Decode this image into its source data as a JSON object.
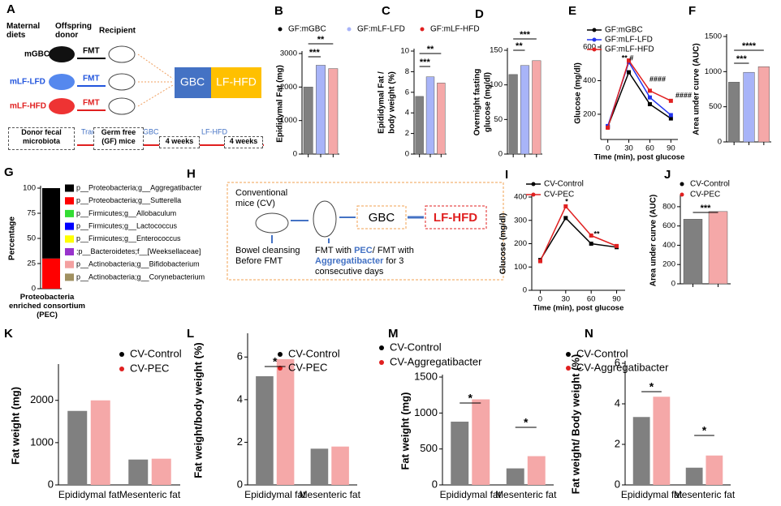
{
  "diagram_a": {
    "panel": "A",
    "maternal_diets": "Maternal diets",
    "offspring_donor": "Offspring donor",
    "recipient": "Recipient",
    "groups": [
      "mGBC",
      "mLF-LFD",
      "mLF-HFD"
    ],
    "fmt": [
      "FMT",
      "FMT",
      "FMT"
    ],
    "box": [
      "GBC",
      "LF-HFD"
    ],
    "flow": [
      "Donor fecal microbiota",
      "Transfer",
      "Germ free (GF) mice",
      "GBC",
      "4 weeks",
      "LF-HFD",
      "4 weeks"
    ]
  },
  "diagram_h": {
    "panel": "H",
    "mice": "Conventional mice (CV)",
    "cleansing": "Bowel cleansing Before FMT",
    "fmt": [
      "FMT with ",
      "PEC",
      "/ FMT with ",
      "Aggregatibacter",
      " for 3 consecutive days"
    ],
    "box": [
      "GBC",
      "LF-HFD"
    ]
  },
  "chart_data": [
    {
      "panel": "B",
      "type": "bar",
      "ylabel": "Epididymal Fat (mg)",
      "categories": [
        null,
        null,
        null
      ],
      "values": [
        2000,
        2650,
        2550
      ],
      "colors": [
        "#808080",
        "#a8b4f8",
        "#f5a8a8"
      ],
      "legend": [
        "GF:mGBC",
        "GF:mLF-LFD",
        "GF:mLF-HFD"
      ],
      "ylim": [
        0,
        3000
      ],
      "yticks": [
        0,
        1000,
        2000,
        3000
      ],
      "annotations": [
        "***",
        "**"
      ]
    },
    {
      "panel": "C",
      "type": "bar",
      "ylabel": [
        "Epididymal Fat /",
        "body weight (%)"
      ],
      "categories": [
        null,
        null,
        null
      ],
      "values": [
        5.6,
        7.5,
        6.9
      ],
      "colors": [
        "#808080",
        "#a8b4f8",
        "#f5a8a8"
      ],
      "ylim": [
        0,
        10
      ],
      "yticks": [
        0,
        2,
        4,
        6,
        8,
        10
      ],
      "annotations": [
        "***",
        "**"
      ]
    },
    {
      "panel": "D",
      "type": "bar",
      "ylabel": [
        "Overnight fasting",
        "glucose (mg/dl)"
      ],
      "categories": [
        null,
        null,
        null
      ],
      "values": [
        115,
        128,
        135
      ],
      "colors": [
        "#808080",
        "#a8b4f8",
        "#f5a8a8"
      ],
      "ylim": [
        0,
        150
      ],
      "yticks": [
        0,
        50,
        100,
        150
      ],
      "annotations": [
        "**",
        "***"
      ]
    },
    {
      "panel": "E",
      "type": "line",
      "ylabel": "Glucose (mg/dl)",
      "xlabel": "Time (min), post glucose",
      "x": [
        0,
        30,
        60,
        90
      ],
      "xlim": [
        -10,
        100
      ],
      "xticks": [
        0,
        30,
        60,
        90
      ],
      "ylim": [
        50,
        600
      ],
      "yticks": [
        200,
        400,
        600
      ],
      "series": [
        {
          "name": "GF:mGBC",
          "color": "#000000",
          "values": [
            125,
            450,
            260,
            175
          ]
        },
        {
          "name": "GF:mLF-LFD",
          "color": "#2233ee",
          "values": [
            130,
            510,
            300,
            195
          ]
        },
        {
          "name": "GF:mLF-HFD",
          "color": "#e02020",
          "values": [
            120,
            520,
            340,
            280
          ]
        }
      ],
      "annotations": [
        "** #",
        "####",
        "####"
      ]
    },
    {
      "panel": "F",
      "type": "bar",
      "ylabel": "Area under curve (AUC)",
      "categories": [
        null,
        null,
        null
      ],
      "values": [
        850,
        990,
        1070
      ],
      "colors": [
        "#808080",
        "#a8b4f8",
        "#f5a8a8"
      ],
      "ylim": [
        0,
        1500
      ],
      "yticks": [
        0,
        500,
        1000,
        1500
      ],
      "annotations": [
        "***",
        "****"
      ]
    },
    {
      "panel": "G",
      "type": "stacked",
      "ylabel": "Percentage",
      "categories": [
        "Proteobacteria enriched consortium (PEC)"
      ],
      "ylim": [
        0,
        100
      ],
      "yticks": [
        0,
        25,
        50,
        75,
        100
      ],
      "series": [
        {
          "name": "p__Proteobacteria;g__Aggregatibacter",
          "color": "#000000",
          "values": [
            70
          ]
        },
        {
          "name": "p__Proteobacteria;g__Sutterella",
          "color": "#ff0000",
          "values": [
            30
          ]
        },
        {
          "name": "p__Firmicutes;g__Allobaculum",
          "color": "#33dd33",
          "values": [
            0
          ]
        },
        {
          "name": "p__Firmicutes;g__Lactococcus",
          "color": "#0000ff",
          "values": [
            0
          ]
        },
        {
          "name": "p__Firmicutes;g__Enterococcus",
          "color": "#ffff00",
          "values": [
            0
          ]
        },
        {
          "name": ";p__Bacteroidetes;f__[Weeksellaceae]",
          "color": "#9933cc",
          "values": [
            0
          ]
        },
        {
          "name": "p__Actinobacteria;g__Bifidobacterium",
          "color": "#f4a0a0",
          "values": [
            0
          ]
        },
        {
          "name": "p__Actinobacteria;g__Corynebacterium",
          "color": "#a09060",
          "values": [
            0
          ]
        }
      ]
    },
    {
      "panel": "I",
      "type": "line",
      "ylabel": "Glucose (mg/dl)",
      "xlabel": "Time (min), post glucose",
      "x": [
        0,
        30,
        60,
        90
      ],
      "xlim": [
        -10,
        100
      ],
      "xticks": [
        0,
        30,
        60,
        90
      ],
      "ylim": [
        0,
        400
      ],
      "yticks": [
        0,
        100,
        200,
        300,
        400
      ],
      "series": [
        {
          "name": "CV-Control",
          "color": "#000000",
          "values": [
            130,
            310,
            200,
            185
          ]
        },
        {
          "name": "CV-PEC",
          "color": "#e02020",
          "values": [
            125,
            360,
            235,
            190
          ]
        }
      ],
      "annotations": [
        "*",
        "**"
      ]
    },
    {
      "panel": "J",
      "type": "bar",
      "ylabel": "Area under curve (AUC)",
      "categories": [
        null,
        null
      ],
      "values": [
        670,
        750
      ],
      "colors": [
        "#808080",
        "#f5a8a8"
      ],
      "legend": [
        "CV-Control",
        "CV-PEC"
      ],
      "ylim": [
        0,
        900
      ],
      "yticks": [
        0,
        200,
        400,
        600,
        800
      ],
      "annotations": [
        "***"
      ]
    },
    {
      "panel": "K",
      "type": "grouped",
      "ylabel": "Fat weight (mg)",
      "categories": [
        "Epididymal fat",
        "Mesenteric fat"
      ],
      "series": [
        {
          "name": "CV-Control",
          "color": "#808080",
          "values": [
            1750,
            600
          ]
        },
        {
          "name": "CV-PEC",
          "color": "#f5a8a8",
          "values": [
            2000,
            620
          ]
        }
      ],
      "ylim": [
        0,
        2800
      ],
      "yticks": [
        0,
        1000,
        2000
      ],
      "annotations": []
    },
    {
      "panel": "L",
      "type": "grouped",
      "ylabel": "Fat weight/body weight (%)",
      "categories": [
        "Epididymal fat",
        "Mesenteric fat"
      ],
      "series": [
        {
          "name": "CV-Control",
          "color": "#808080",
          "values": [
            5.1,
            1.7
          ]
        },
        {
          "name": "CV-PEC",
          "color": "#f5a8a8",
          "values": [
            5.9,
            1.8
          ]
        }
      ],
      "ylim": [
        0,
        7
      ],
      "yticks": [
        0,
        2,
        4,
        6
      ],
      "annotations": [
        "*"
      ]
    },
    {
      "panel": "M",
      "type": "grouped",
      "ylabel": "Fat weight (mg)",
      "categories": [
        "Epididymal fat",
        "Mesenteric fat"
      ],
      "series": [
        {
          "name": "CV-Control",
          "color": "#808080",
          "values": [
            880,
            230
          ]
        },
        {
          "name": "CV-Aggregatibacter",
          "color": "#f5a8a8",
          "values": [
            1190,
            400
          ]
        }
      ],
      "ylim": [
        0,
        1500
      ],
      "yticks": [
        0,
        500,
        1000,
        1500
      ],
      "annotations": [
        "*",
        "*"
      ]
    },
    {
      "panel": "N",
      "type": "grouped",
      "ylabel": "Fat weight/ Body weight (%)",
      "categories": [
        "Epididymal fat",
        "Mesenteric fat"
      ],
      "series": [
        {
          "name": "CV-Control",
          "color": "#808080",
          "values": [
            3.35,
            0.85
          ]
        },
        {
          "name": "CV-Aggregatibacter",
          "color": "#f5a8a8",
          "values": [
            4.35,
            1.45
          ]
        }
      ],
      "ylim": [
        0,
        6
      ],
      "yticks": [
        0,
        2,
        4,
        6
      ],
      "annotations": [
        "*",
        "*"
      ]
    }
  ]
}
